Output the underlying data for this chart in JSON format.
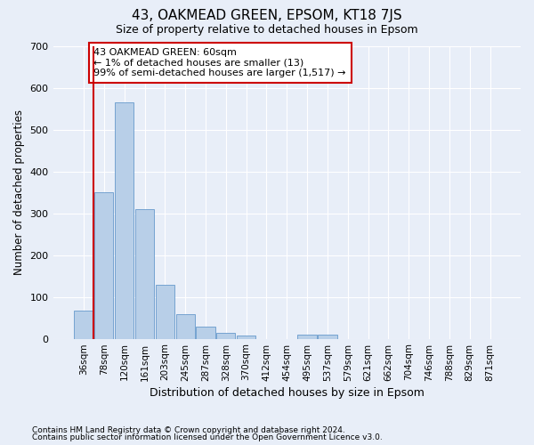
{
  "title": "43, OAKMEAD GREEN, EPSOM, KT18 7JS",
  "subtitle": "Size of property relative to detached houses in Epsom",
  "xlabel": "Distribution of detached houses by size in Epsom",
  "ylabel": "Number of detached properties",
  "annotation_lines": [
    "43 OAKMEAD GREEN: 60sqm",
    "← 1% of detached houses are smaller (13)",
    "99% of semi-detached houses are larger (1,517) →"
  ],
  "footnote1": "Contains HM Land Registry data © Crown copyright and database right 2024.",
  "footnote2": "Contains public sector information licensed under the Open Government Licence v3.0.",
  "bar_categories": [
    "36sqm",
    "78sqm",
    "120sqm",
    "161sqm",
    "203sqm",
    "245sqm",
    "287sqm",
    "328sqm",
    "370sqm",
    "412sqm",
    "454sqm",
    "495sqm",
    "537sqm",
    "579sqm",
    "621sqm",
    "662sqm",
    "704sqm",
    "746sqm",
    "788sqm",
    "829sqm",
    "871sqm"
  ],
  "bar_values": [
    68,
    350,
    565,
    310,
    128,
    58,
    28,
    14,
    7,
    0,
    0,
    10,
    10,
    0,
    0,
    0,
    0,
    0,
    0,
    0,
    0
  ],
  "bar_color": "#b8cfe8",
  "bar_edge_color": "#6699cc",
  "vline_color": "#cc0000",
  "annotation_box_facecolor": "#ffffff",
  "annotation_border_color": "#cc0000",
  "bg_color": "#e8eef8",
  "grid_color": "#ffffff",
  "ylim": [
    0,
    700
  ],
  "yticks": [
    0,
    100,
    200,
    300,
    400,
    500,
    600,
    700
  ],
  "title_fontsize": 11,
  "subtitle_fontsize": 9
}
